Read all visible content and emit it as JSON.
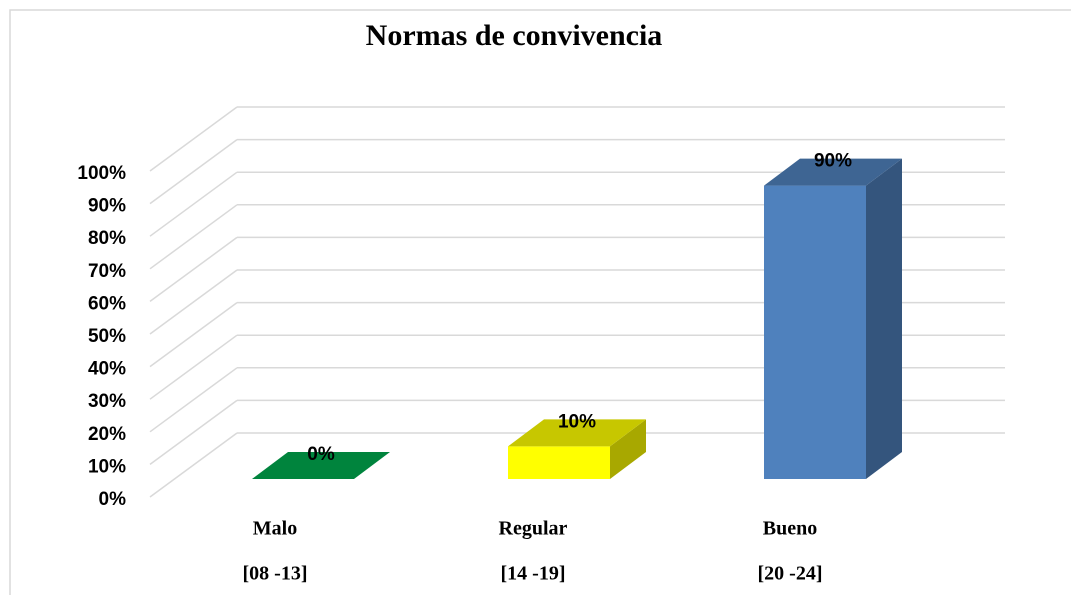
{
  "chart_data": {
    "type": "bar3d",
    "title": "Normas de convivencia",
    "categories": [
      "Malo",
      "Regular",
      "Bueno"
    ],
    "ranges": [
      "[08 -13]",
      "[14 -19]",
      "[20 -24]"
    ],
    "values": [
      0,
      10,
      90
    ],
    "value_labels": [
      "0%",
      "10%",
      "90%"
    ],
    "colors": [
      "#00843d",
      "#ffff00",
      "#4f81bd"
    ],
    "ylim": [
      0,
      100
    ],
    "yticks": [
      {
        "value": 0,
        "label": "0%"
      },
      {
        "value": 10,
        "label": "10%"
      },
      {
        "value": 20,
        "label": "20%"
      },
      {
        "value": 30,
        "label": "30%"
      },
      {
        "value": 40,
        "label": "40%"
      },
      {
        "value": 50,
        "label": "50%"
      },
      {
        "value": 60,
        "label": "60%"
      },
      {
        "value": 70,
        "label": "70%"
      },
      {
        "value": 80,
        "label": "80%"
      },
      {
        "value": 90,
        "label": "90%"
      },
      {
        "value": 100,
        "label": "100%"
      }
    ],
    "grid": true
  }
}
